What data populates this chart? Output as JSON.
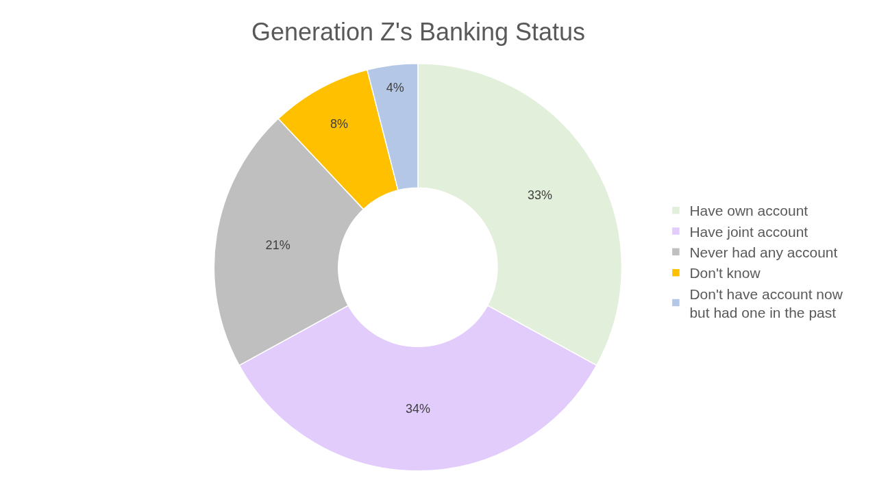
{
  "chart_data": {
    "type": "donut",
    "title": "Generation Z's Banking Status",
    "categories": [
      "Have own account",
      "Have joint account",
      "Never had any account",
      "Don't know",
      "Don't have account now but had one in the past"
    ],
    "values": [
      33,
      34,
      21,
      8,
      4
    ],
    "colors": [
      "#e2efda",
      "#e2ccfc",
      "#bfbfbf",
      "#ffc000",
      "#b4c7e7"
    ],
    "value_labels": [
      "33%",
      "34%",
      "21%",
      "8%",
      "4%"
    ],
    "legend": "right"
  }
}
